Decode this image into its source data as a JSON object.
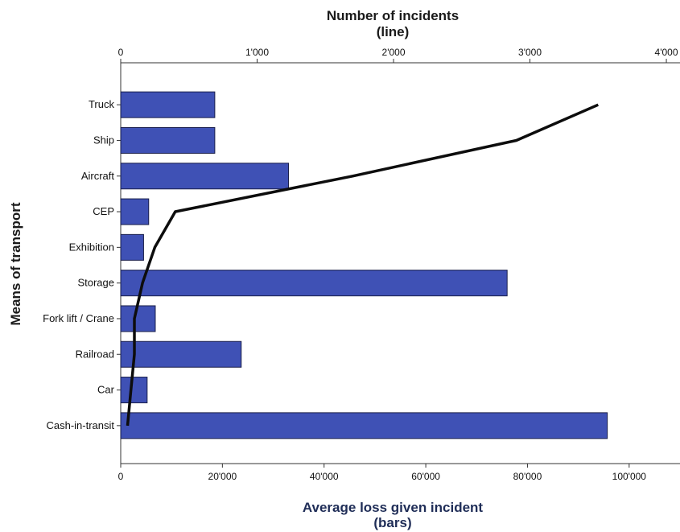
{
  "chart_data": {
    "type": "bar",
    "orientation": "horizontal",
    "categories": [
      "Truck",
      "Ship",
      "Aircraft",
      "CEP",
      "Exhibition",
      "Storage",
      "Fork lift / Crane",
      "Railroad",
      "Car",
      "Cash-in-transit"
    ],
    "series": [
      {
        "axis": "bottom",
        "mark": "bar",
        "values": [
          18500,
          18500,
          33000,
          5500,
          4500,
          76000,
          6800,
          23700,
          5200,
          95700
        ]
      },
      {
        "axis": "top",
        "mark": "line",
        "values": [
          3500,
          2900,
          1700,
          400,
          250,
          160,
          100,
          100,
          75,
          50
        ]
      }
    ],
    "bottom_axis": {
      "title_line1": "Average loss given incident",
      "title_line2": "(bars)",
      "range": [
        0,
        110000
      ],
      "ticks": [
        0,
        20000,
        40000,
        60000,
        80000,
        100000
      ],
      "tick_labels": [
        "0",
        "20'000",
        "40'000",
        "60'000",
        "80'000",
        "100'000"
      ]
    },
    "top_axis": {
      "title_line1": "Number of incidents",
      "title_line2": "(line)",
      "range": [
        0,
        4100
      ],
      "ticks": [
        0,
        1000,
        2000,
        3000,
        4000
      ],
      "tick_labels": [
        "0",
        "1'000",
        "2'000",
        "3'000",
        "4'000"
      ]
    },
    "y_axis": {
      "title": "Means of transport"
    },
    "grid": false,
    "colors": {
      "bar_fill": "#3f51b5",
      "bar_stroke": "#1a1f4a",
      "line": "#0d0d0d",
      "axis": "#333333"
    }
  }
}
